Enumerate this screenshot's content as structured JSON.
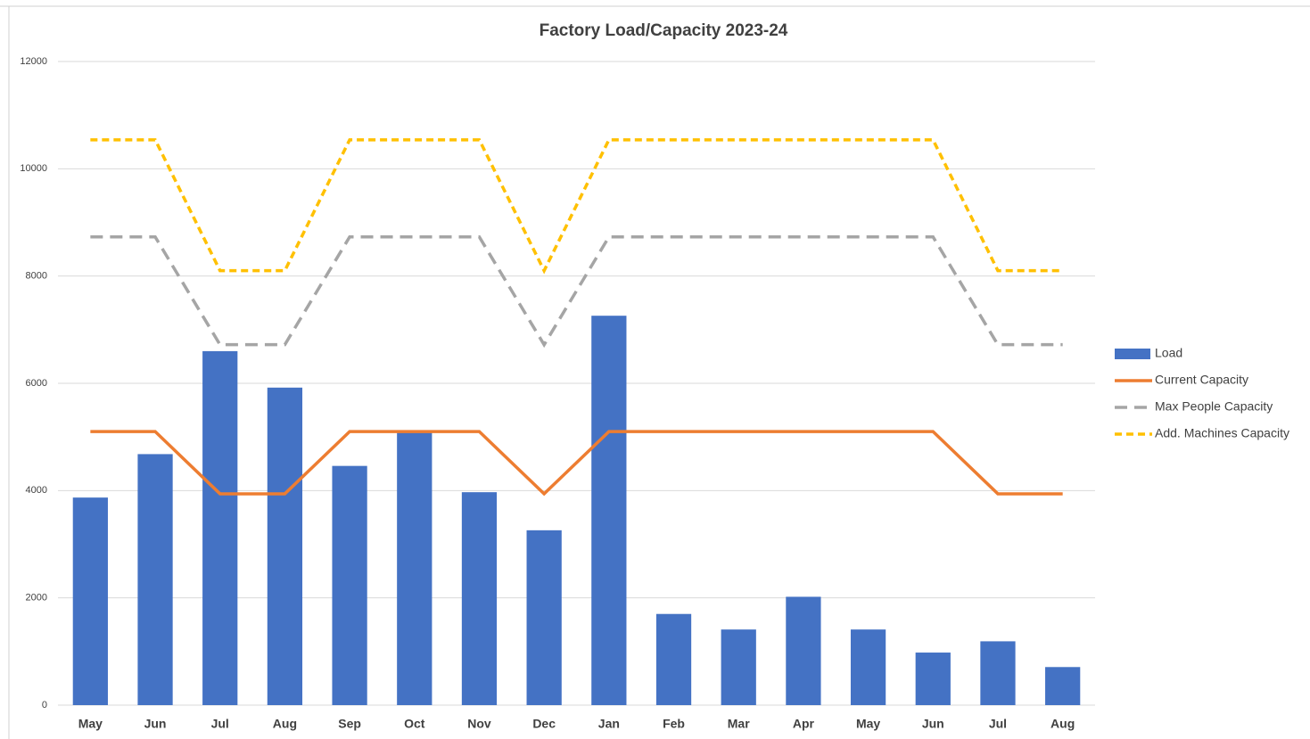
{
  "chart_data": {
    "type": "bar",
    "title": "Factory Load/Capacity 2023-24",
    "categories": [
      "May",
      "Jun",
      "Jul",
      "Aug",
      "Sep",
      "Oct",
      "Nov",
      "Dec",
      "Jan",
      "Feb",
      "Mar",
      "Apr",
      "May",
      "Jun",
      "Jul",
      "Aug"
    ],
    "series": [
      {
        "name": "Load",
        "type": "bar",
        "color": "#4472c4",
        "values": [
          3870,
          4680,
          6600,
          5920,
          4460,
          5100,
          3970,
          3260,
          7260,
          1700,
          1410,
          2020,
          1410,
          980,
          1190,
          710
        ]
      },
      {
        "name": "Current Capacity",
        "type": "line",
        "color": "#ed7d31",
        "dash": "solid",
        "values": [
          5100,
          5100,
          3940,
          3940,
          5100,
          5100,
          5100,
          3940,
          5100,
          5100,
          5100,
          5100,
          5100,
          5100,
          3940,
          3940
        ]
      },
      {
        "name": "Max People Capacity",
        "type": "line",
        "color": "#a5a5a5",
        "dash": "dashed",
        "values": [
          8730,
          8730,
          6720,
          6720,
          8730,
          8730,
          8730,
          6720,
          8730,
          8730,
          8730,
          8730,
          8730,
          8730,
          6720,
          6720
        ]
      },
      {
        "name": "Add. Machines Capacity",
        "type": "line",
        "color": "#ffc000",
        "dash": "dotted",
        "values": [
          10540,
          10540,
          8100,
          8100,
          10540,
          10540,
          10540,
          8100,
          10540,
          10540,
          10540,
          10540,
          10540,
          10540,
          8100,
          8100
        ]
      }
    ],
    "ylim": [
      0,
      12000
    ],
    "yticks": [
      0,
      2000,
      4000,
      6000,
      8000,
      10000,
      12000
    ],
    "grid": true,
    "legend": "right"
  }
}
